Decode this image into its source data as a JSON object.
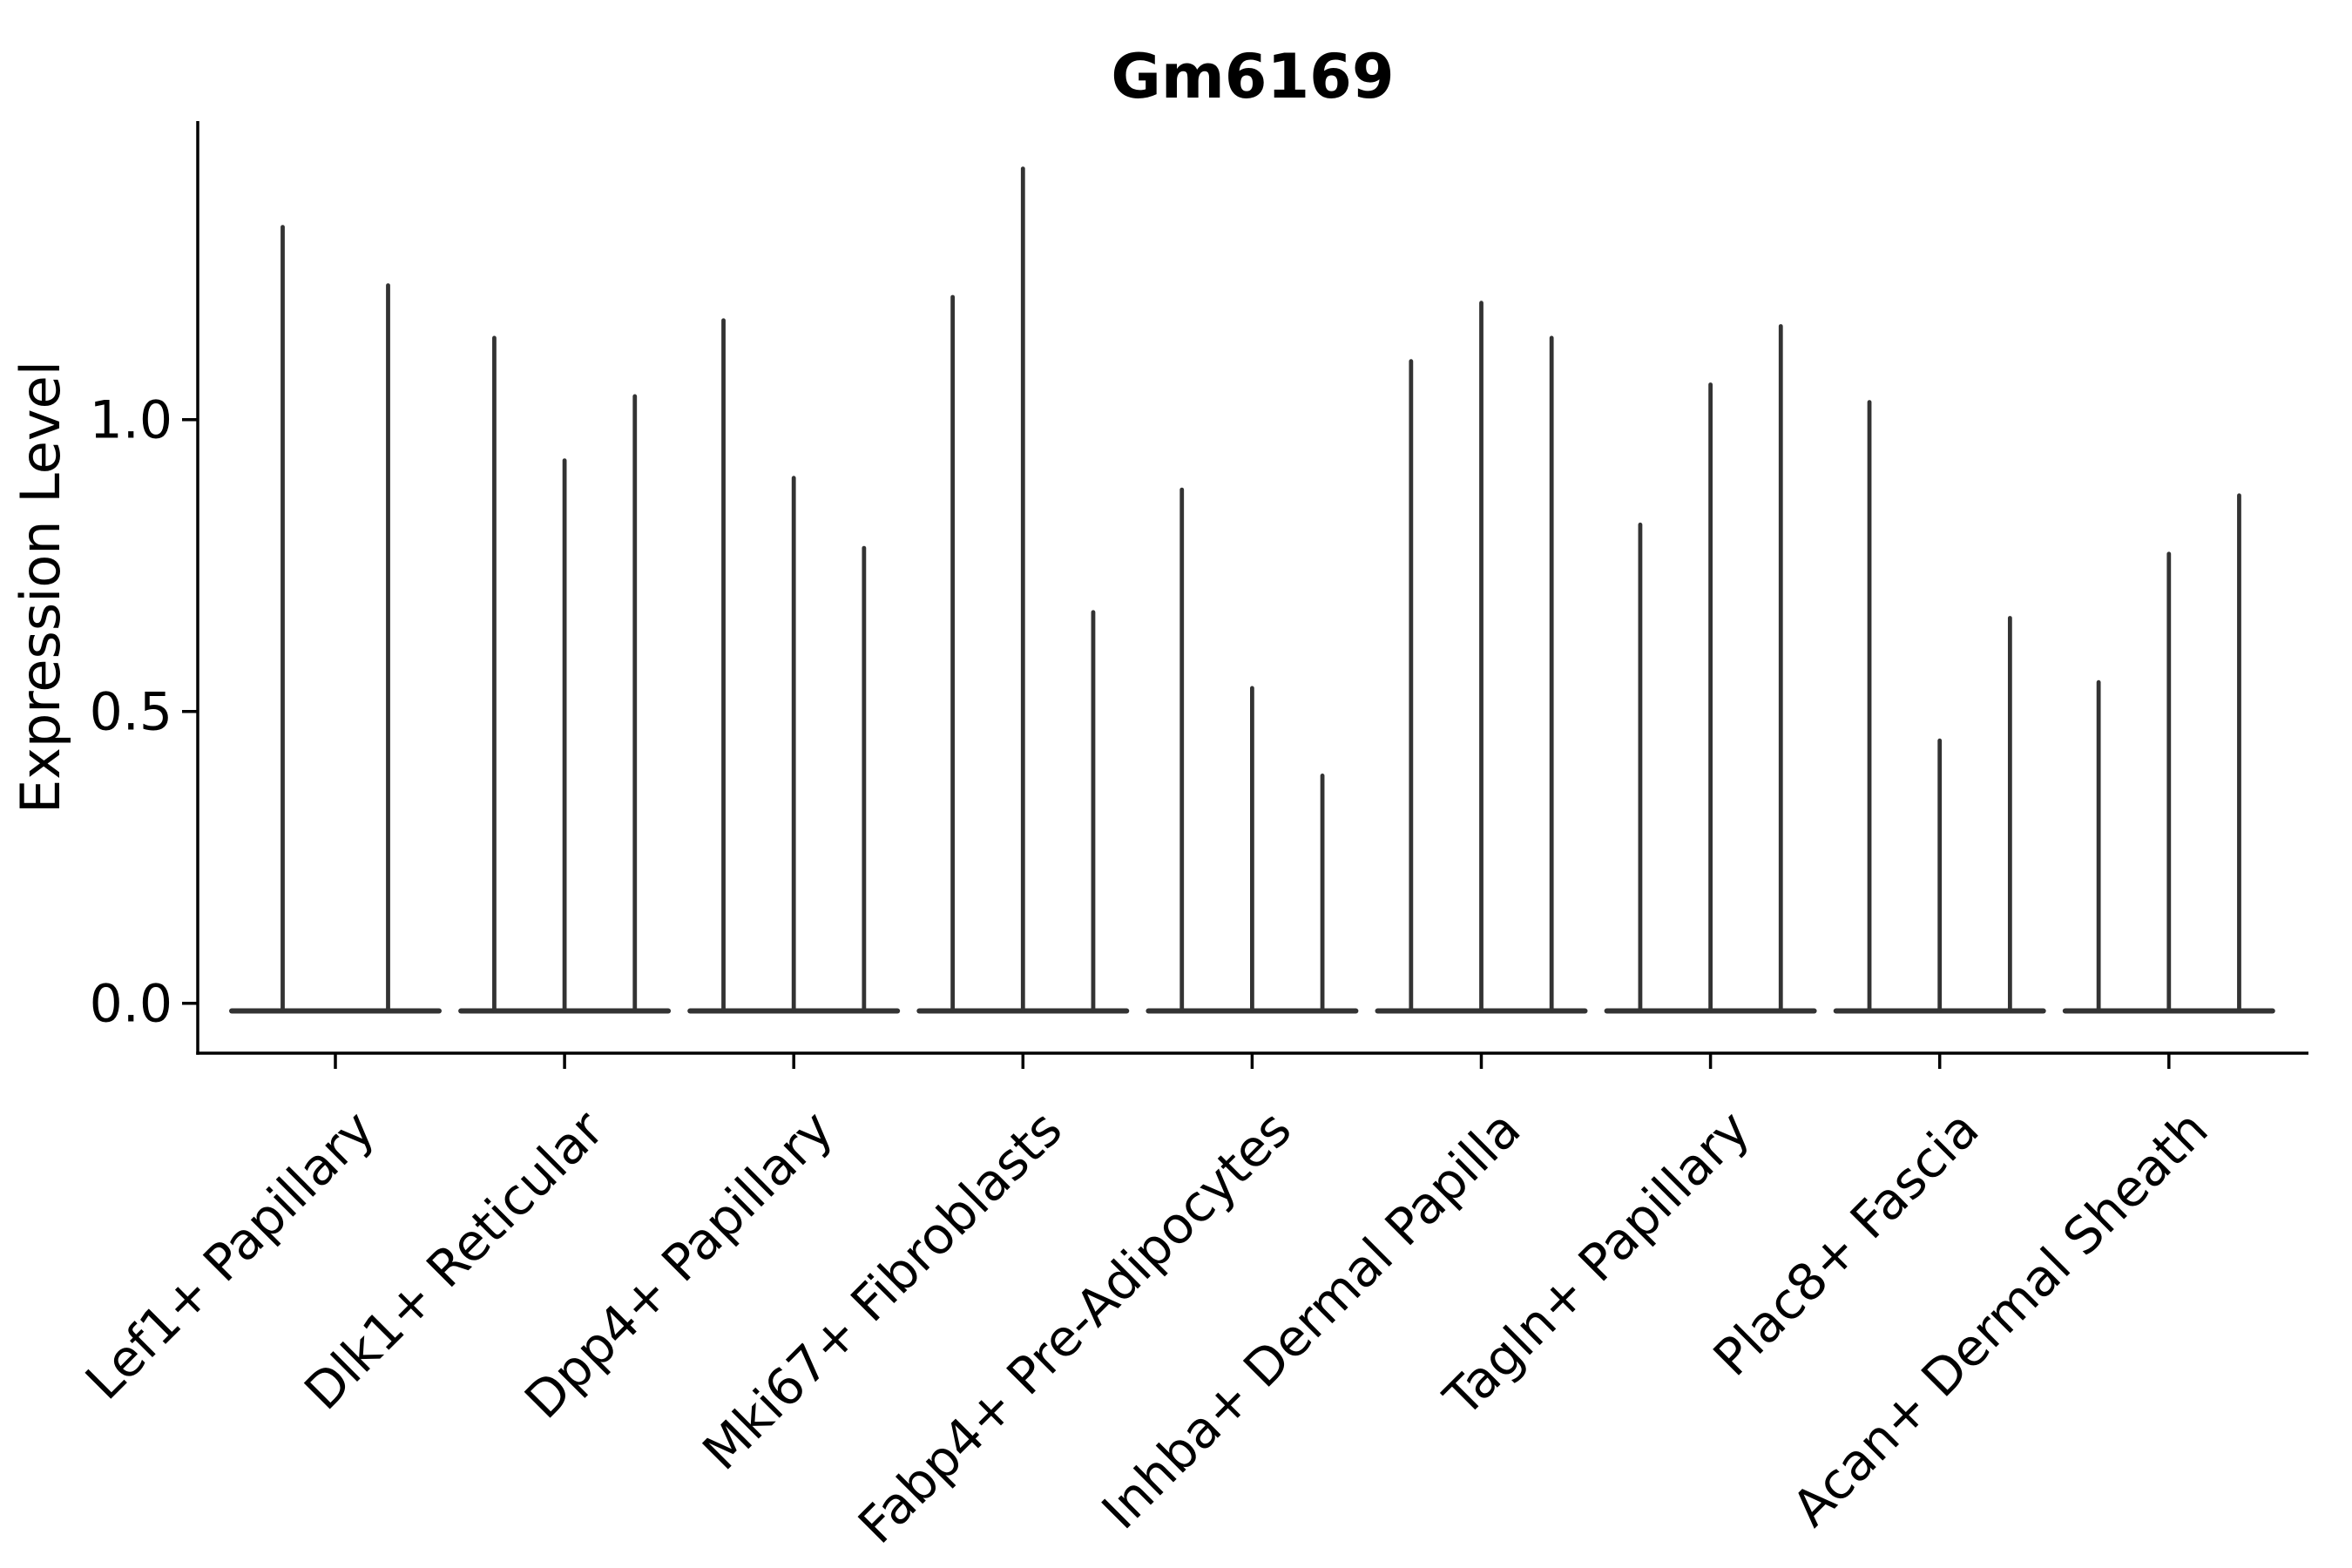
{
  "title": "Gm6169",
  "axes": {
    "ylabel": "Expression Level",
    "y_tick_labels": [
      "0.0",
      "0.5",
      "1.0"
    ]
  },
  "chart_data": {
    "type": "violin",
    "title": "Gm6169",
    "xlabel": "",
    "ylabel": "Expression Level",
    "grid": false,
    "legend": "none",
    "ylim": [
      -0.09,
      1.51
    ],
    "y_ticks": [
      0.0,
      0.5,
      1.0
    ],
    "y_tick_labels": [
      "0.0",
      "0.5",
      "1.0"
    ],
    "categories": [
      "Lef1+ Papillary",
      "Dlk1+ Reticular",
      "Dpp4+ Papillary",
      "Mki67+ Fibroblasts",
      "Fabp4+ Pre-Adipocytes",
      "Inhba+ Dermal Papilla",
      "Tagln+ Papillary",
      "Plac8+ Fascia",
      "Acan+ Dermal Sheath"
    ],
    "violin_max_values": [
      [
        1.33,
        1.23
      ],
      [
        1.14,
        0.93,
        1.04
      ],
      [
        1.17,
        0.9,
        0.78
      ],
      [
        1.21,
        1.43,
        0.67
      ],
      [
        0.88,
        0.54,
        0.39
      ],
      [
        1.1,
        1.2,
        1.14
      ],
      [
        0.82,
        1.06,
        1.16
      ],
      [
        1.03,
        0.45,
        0.66
      ],
      [
        0.55,
        0.77,
        0.87
      ]
    ],
    "baseline_value": 0.0,
    "violin_color": "#333333",
    "spine_color": "#000000",
    "notes": "Each violin is a thin vertical density spike rising from a flat base at expression 0 to its maximum value; first category has 2 violins, all others have 3."
  }
}
